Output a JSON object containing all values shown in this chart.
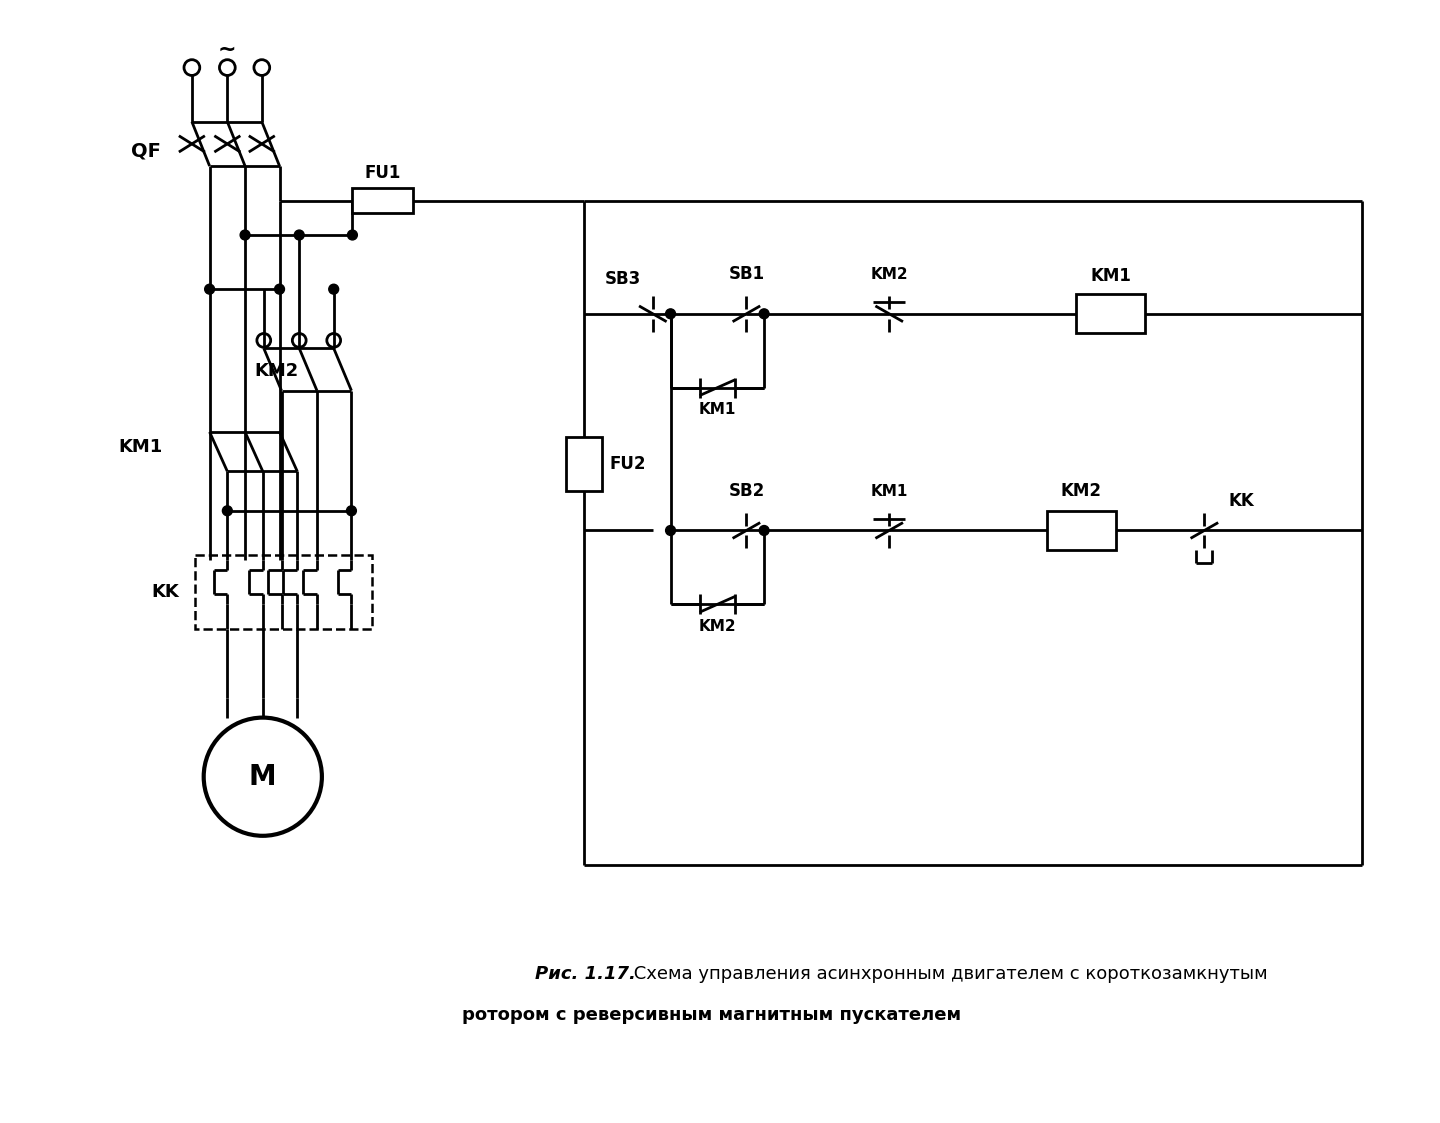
{
  "title_italic": "Рис. 1.17.",
  "title_normal": " Схема управления асинхронным двигателем с короткозамкнутым",
  "title_line2": "ротором с реверсивным магнитным пускателем",
  "bg_color": "#ffffff",
  "line_color": "#000000",
  "lw": 2.0,
  "fig_width": 14.4,
  "fig_height": 11.23
}
